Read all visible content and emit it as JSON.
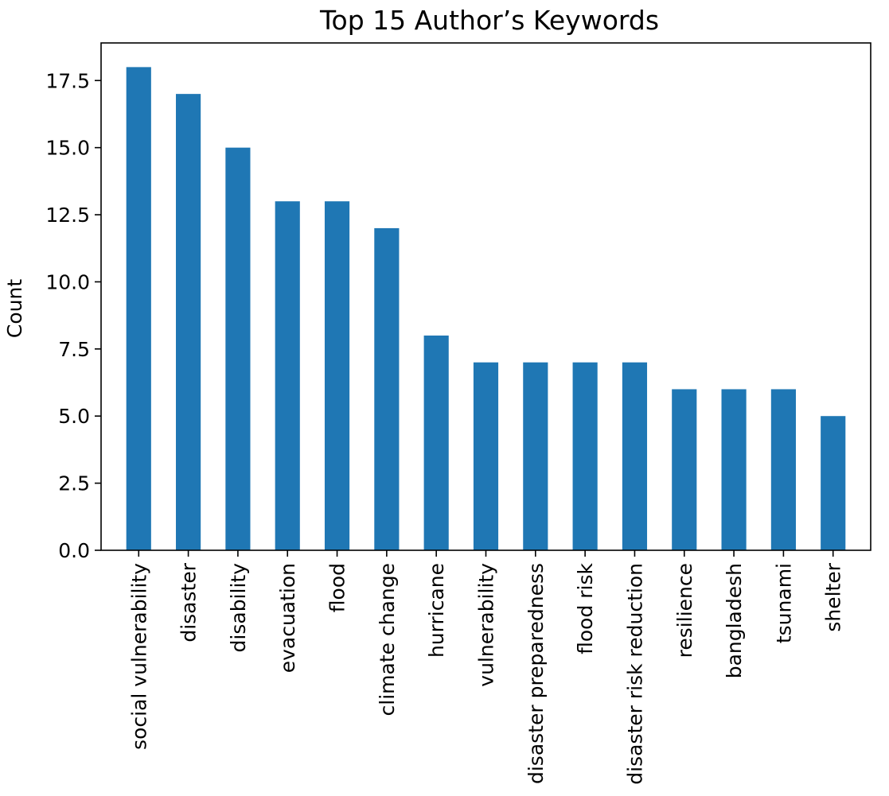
{
  "chart_data": {
    "type": "bar",
    "title": "Top 15 Author’s Keywords",
    "xlabel": "",
    "ylabel": "Count",
    "ylim": [
      0,
      18.9
    ],
    "yticks": [
      "0.0",
      "2.5",
      "5.0",
      "7.5",
      "10.0",
      "12.5",
      "15.0",
      "17.5"
    ],
    "grid": false,
    "bar_color": "#1f77b4",
    "categories": [
      "social vulnerability",
      "disaster",
      "disability",
      "evacuation",
      "flood",
      "climate change",
      "hurricane",
      "vulnerability",
      "disaster preparedness",
      "flood risk",
      "disaster risk reduction",
      "resilience",
      "bangladesh",
      "tsunami",
      "shelter"
    ],
    "values": [
      18,
      17,
      15,
      13,
      13,
      12,
      8,
      7,
      7,
      7,
      7,
      6,
      6,
      6,
      5
    ]
  }
}
